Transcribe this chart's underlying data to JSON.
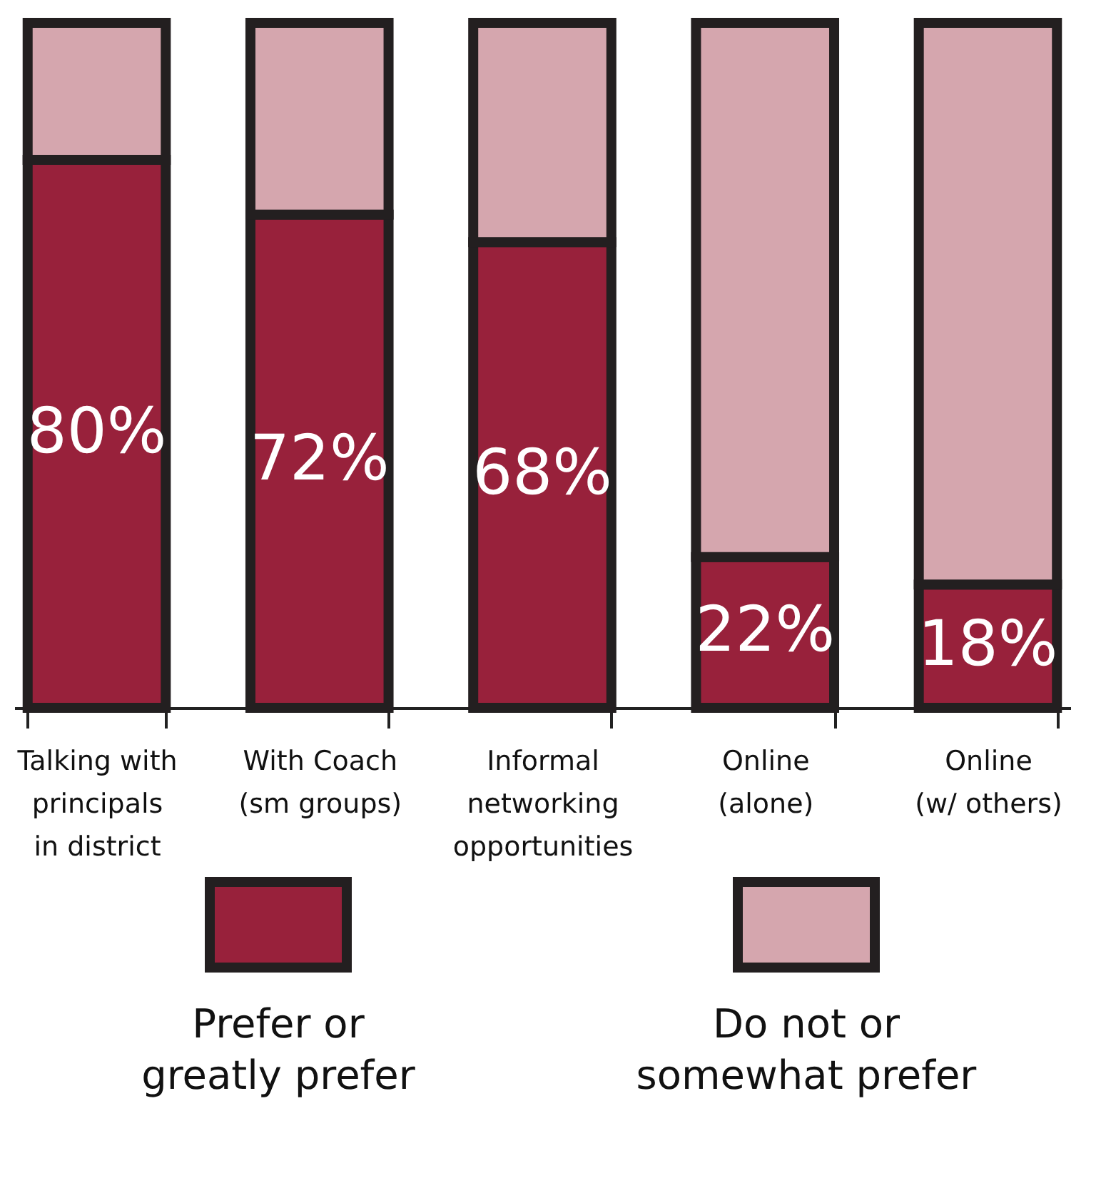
{
  "chart_data": {
    "type": "bar",
    "stacked": true,
    "legend": "bottom",
    "categories": [
      "Talking with\nprincipals\nin district",
      "With Coach\n(sm groups)",
      "Informal\nnetworking\nopportunities",
      "Online\n(alone)",
      "Online\n(w/ others)"
    ],
    "series": [
      {
        "name": "Prefer or\ngreatly prefer",
        "color": "#98213b",
        "values": [
          80,
          72,
          68,
          22,
          18
        ],
        "value_labels": [
          "80%",
          "72%",
          "68%",
          "22%",
          "18%"
        ]
      },
      {
        "name": "Do not or\nsomewhat prefer",
        "color": "#d5a6ae",
        "values": [
          20,
          28,
          32,
          78,
          82
        ]
      }
    ]
  }
}
